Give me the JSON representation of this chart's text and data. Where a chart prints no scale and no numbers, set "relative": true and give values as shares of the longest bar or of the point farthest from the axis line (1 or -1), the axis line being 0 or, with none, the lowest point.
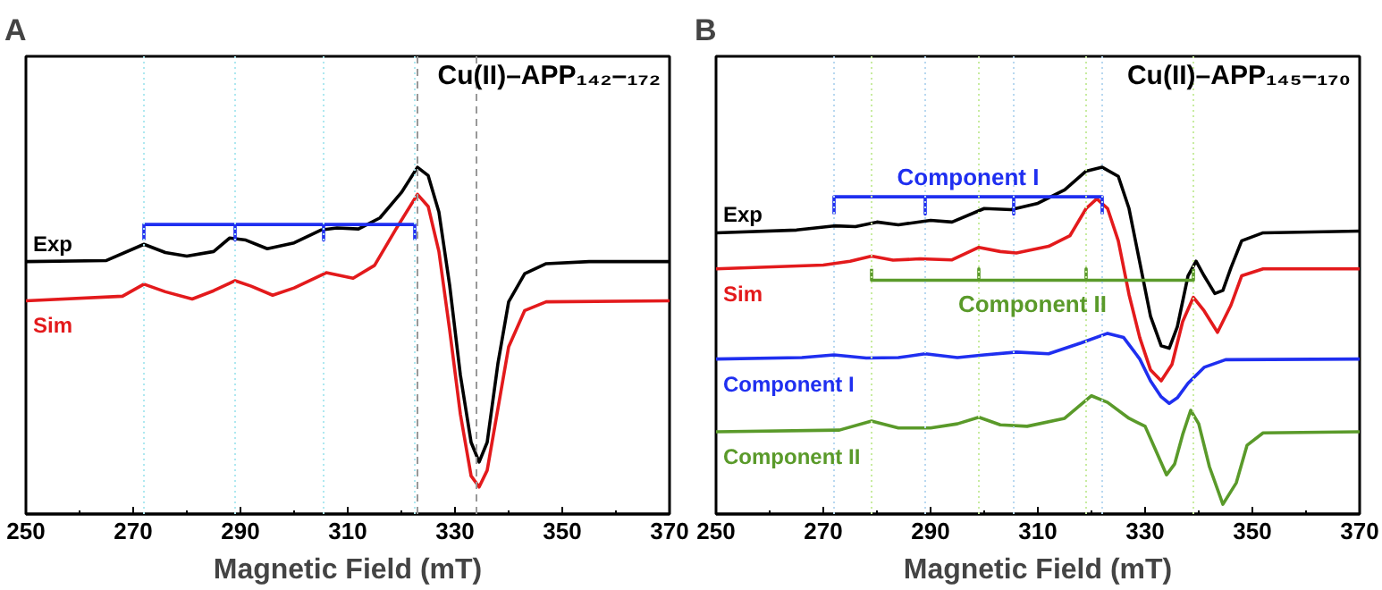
{
  "chart_data": [
    {
      "type": "line",
      "title": "A",
      "xlabel": "Magnetic Field (mT)",
      "relative": true,
      "xlim": [
        250,
        370
      ],
      "xticks": [
        250,
        270,
        290,
        310,
        330,
        350,
        370
      ],
      "grid": false,
      "tick_labels": "x",
      "annotations": [
        "Cu(II)–APP₁₄₂–₁₇₂"
      ],
      "ref_lines": [
        {
          "axis": "x",
          "value": 272,
          "color": "#aee8f0",
          "line_style": "dotted"
        },
        {
          "axis": "x",
          "value": 289,
          "color": "#aee8f0",
          "line_style": "dotted"
        },
        {
          "axis": "x",
          "value": 305.5,
          "color": "#aee8f0",
          "line_style": "dotted"
        },
        {
          "axis": "x",
          "value": 322.5,
          "color": "#aee8f0",
          "line_style": "dotted"
        },
        {
          "axis": "x",
          "value": 323,
          "color": "#999999",
          "line_style": "dashed"
        },
        {
          "axis": "x",
          "value": 334,
          "color": "#999999",
          "line_style": "dashed"
        }
      ],
      "series": [
        {
          "name": "Exp",
          "color": "#000000",
          "x": [
            250,
            265,
            272,
            276,
            280,
            285,
            288,
            291,
            295,
            300,
            305,
            308,
            312,
            316,
            320,
            323,
            325,
            327,
            329,
            331,
            333,
            334.5,
            336,
            338,
            340,
            343,
            347,
            355,
            370
          ],
          "values": [
            0.728,
            0.731,
            0.778,
            0.754,
            0.744,
            0.757,
            0.796,
            0.79,
            0.765,
            0.782,
            0.819,
            0.825,
            0.822,
            0.854,
            0.927,
            1,
            0.976,
            0.871,
            0.66,
            0.401,
            0.207,
            0.15,
            0.207,
            0.434,
            0.612,
            0.693,
            0.722,
            0.728,
            0.728
          ]
        },
        {
          "name": "Sim",
          "color": "#e31a1c",
          "x": [
            250,
            268,
            272,
            276,
            281,
            285,
            289,
            292,
            296,
            300,
            306,
            311,
            315,
            319,
            323,
            325,
            327,
            329,
            331,
            333,
            334.5,
            336,
            338,
            340,
            343,
            347,
            370
          ],
          "values": [
            0.615,
            0.628,
            0.663,
            0.641,
            0.62,
            0.644,
            0.673,
            0.657,
            0.631,
            0.652,
            0.696,
            0.68,
            0.717,
            0.822,
            0.922,
            0.887,
            0.757,
            0.531,
            0.288,
            0.11,
            0.078,
            0.126,
            0.304,
            0.482,
            0.587,
            0.612,
            0.615
          ]
        },
        {
          "color": "#1f2ff0",
          "x": [
            272,
            272,
            289,
            289,
            289,
            305.5,
            305.5,
            305.5,
            322.5,
            322.5
          ],
          "values": [
            0.79,
            0.835,
            0.835,
            0.79,
            0.835,
            0.835,
            0.79,
            0.835,
            0.835,
            0.79
          ]
        }
      ]
    },
    {
      "type": "line",
      "title": "B",
      "xlabel": "Magnetic Field (mT)",
      "relative": true,
      "xlim": [
        250,
        370
      ],
      "xticks": [
        250,
        270,
        290,
        310,
        330,
        350,
        370
      ],
      "grid": false,
      "tick_labels": "x",
      "annotations": [
        "Cu(II)–APP₁₄₅–₁₇₀"
      ],
      "ref_lines": [
        {
          "axis": "x",
          "value": 272,
          "color": "#b8d8f0",
          "line_style": "dotted"
        },
        {
          "axis": "x",
          "value": 289,
          "color": "#b8d8f0",
          "line_style": "dotted"
        },
        {
          "axis": "x",
          "value": 305.5,
          "color": "#b8d8f0",
          "line_style": "dotted"
        },
        {
          "axis": "x",
          "value": 322,
          "color": "#b8d8f0",
          "line_style": "dotted"
        },
        {
          "axis": "x",
          "value": 279,
          "color": "#c8eca0",
          "line_style": "dotted"
        },
        {
          "axis": "x",
          "value": 299,
          "color": "#c8eca0",
          "line_style": "dotted"
        },
        {
          "axis": "x",
          "value": 319,
          "color": "#c8eca0",
          "line_style": "dotted"
        },
        {
          "axis": "x",
          "value": 339,
          "color": "#c8eca0",
          "line_style": "dotted"
        }
      ],
      "series": [
        {
          "name": "Exp",
          "color": "#000000",
          "x": [
            250,
            265,
            272,
            276,
            280,
            284,
            290,
            294,
            300,
            305,
            310,
            315,
            319,
            322,
            325,
            327,
            329,
            331,
            333,
            334.5,
            336,
            338,
            339.5,
            341,
            343,
            344.5,
            346,
            348,
            352,
            370
          ],
          "values": [
            0.811,
            0.819,
            0.831,
            0.829,
            0.842,
            0.834,
            0.847,
            0.842,
            0.881,
            0.878,
            0.896,
            0.935,
            0.989,
            1,
            0.974,
            0.881,
            0.726,
            0.571,
            0.485,
            0.478,
            0.54,
            0.687,
            0.729,
            0.687,
            0.636,
            0.645,
            0.71,
            0.788,
            0.811,
            0.816
          ]
        },
        {
          "name": "Sim",
          "color": "#e31a1c",
          "x": [
            250,
            270,
            275,
            279,
            283,
            288,
            294,
            299,
            303,
            306,
            312,
            316,
            319,
            321,
            323,
            325,
            327,
            329,
            331,
            333,
            335,
            337,
            339,
            341,
            343.5,
            346,
            348,
            352,
            370
          ],
          "values": [
            0.707,
            0.718,
            0.729,
            0.744,
            0.732,
            0.736,
            0.733,
            0.769,
            0.757,
            0.753,
            0.772,
            0.803,
            0.881,
            0.909,
            0.881,
            0.788,
            0.633,
            0.509,
            0.416,
            0.384,
            0.431,
            0.555,
            0.625,
            0.586,
            0.524,
            0.602,
            0.687,
            0.707,
            0.707
          ]
        },
        {
          "name": "Component I",
          "color": "#1f2ff0",
          "x": [
            250,
            266,
            272,
            278,
            284,
            289,
            295,
            300,
            306,
            312,
            318,
            323,
            326,
            329,
            331,
            333,
            334.5,
            336,
            338,
            341,
            345,
            370
          ],
          "values": [
            0.447,
            0.451,
            0.459,
            0.45,
            0.451,
            0.462,
            0.451,
            0.459,
            0.467,
            0.462,
            0.493,
            0.521,
            0.509,
            0.447,
            0.384,
            0.338,
            0.319,
            0.335,
            0.377,
            0.423,
            0.445,
            0.447
          ]
        },
        {
          "name": "Component II",
          "color": "#5a9a2a",
          "x": [
            250,
            273,
            279,
            284,
            290,
            295,
            299,
            303,
            308,
            315,
            320,
            323,
            327,
            330,
            332,
            334,
            335.5,
            337,
            338.5,
            340,
            342,
            344.5,
            347,
            349,
            352,
            370
          ],
          "values": [
            0.237,
            0.242,
            0.268,
            0.248,
            0.248,
            0.26,
            0.279,
            0.257,
            0.253,
            0.276,
            0.341,
            0.322,
            0.276,
            0.253,
            0.183,
            0.113,
            0.144,
            0.229,
            0.299,
            0.26,
            0.136,
            0.028,
            0.09,
            0.198,
            0.234,
            0.237
          ]
        },
        {
          "name": "Component I",
          "color": "#1f2ff0",
          "x": [
            272,
            272,
            289,
            289,
            289,
            305.5,
            305.5,
            305.5,
            322,
            322
          ],
          "values": [
            0.865,
            0.915,
            0.915,
            0.865,
            0.915,
            0.915,
            0.865,
            0.915,
            0.915,
            0.865
          ]
        },
        {
          "name": "Component II",
          "color": "#5a9a2a",
          "x": [
            279,
            279,
            299,
            299,
            299,
            319,
            319,
            319,
            339,
            339
          ],
          "values": [
            0.707,
            0.674,
            0.674,
            0.707,
            0.674,
            0.674,
            0.707,
            0.674,
            0.674,
            0.707
          ]
        }
      ]
    }
  ]
}
